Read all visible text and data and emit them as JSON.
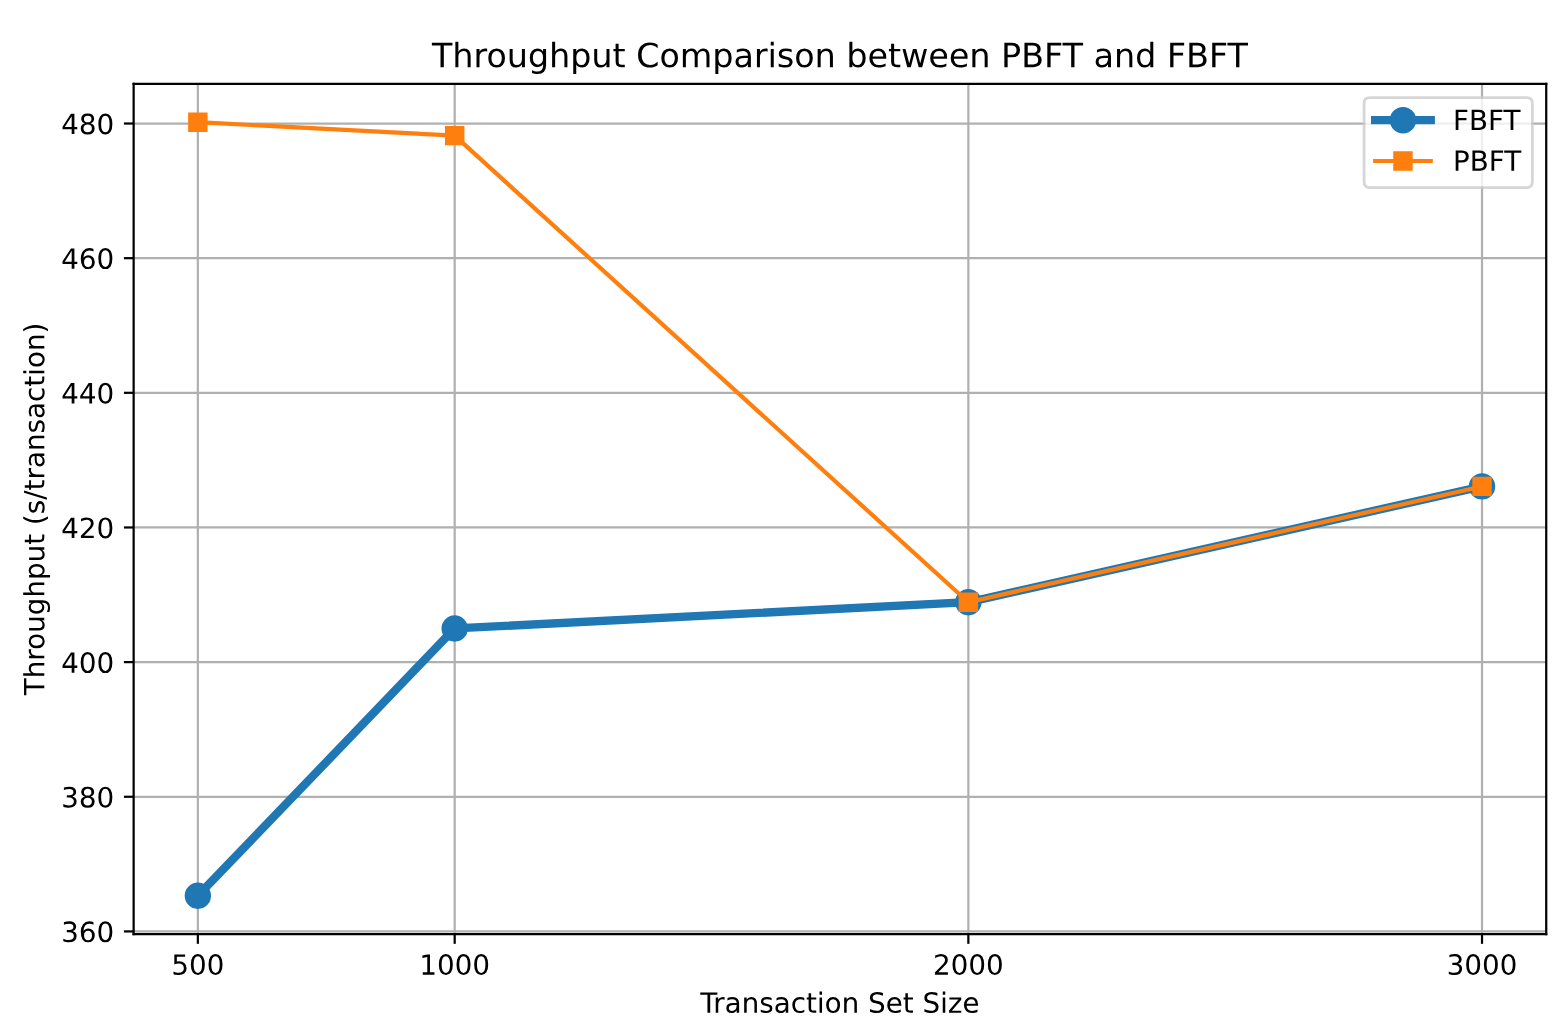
{
  "chart_data": {
    "type": "line",
    "title": "Throughput Comparison between PBFT and FBFT",
    "xlabel": "Transaction Set Size",
    "ylabel": "Throughput (s/transaction)",
    "x": [
      500,
      1000,
      2000,
      3000
    ],
    "series": [
      {
        "name": "FBFT",
        "color": "#1f77b4",
        "marker": "circle",
        "values": [
          365.3,
          405.0,
          408.9,
          426.1
        ]
      },
      {
        "name": "PBFT",
        "color": "#ff7f0e",
        "marker": "square",
        "values": [
          480.2,
          478.2,
          408.9,
          426.1
        ]
      }
    ],
    "xlim": [
      375,
      3125
    ],
    "xticks": [
      500,
      1000,
      2000,
      3000
    ],
    "ylim": [
      359.6,
      485.9
    ],
    "yticks": [
      360,
      380,
      400,
      420,
      440,
      460,
      480
    ],
    "grid": true,
    "legend": "top right",
    "line_style": "solid"
  }
}
